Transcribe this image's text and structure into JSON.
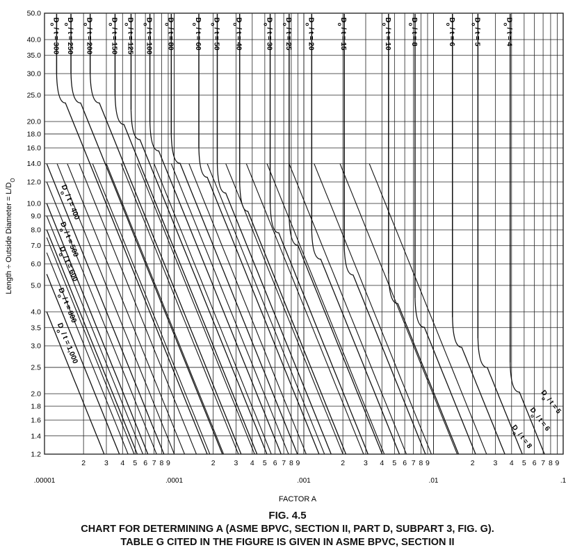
{
  "chart_data": {
    "type": "line",
    "xscale": "log",
    "yscale": "log",
    "xlim": [
      1e-05,
      0.1
    ],
    "ylim": [
      1.2,
      50.0
    ],
    "xlabel": "FACTOR A",
    "ylabel": "Length ÷ Outside Diameter = L/D",
    "ylabel_sub": "O",
    "grid": true,
    "y_ticks": [
      {
        "v": 50.0,
        "label": "50.0"
      },
      {
        "v": 40.0,
        "label": "40.0"
      },
      {
        "v": 35.0,
        "label": "35.0"
      },
      {
        "v": 30.0,
        "label": "30.0"
      },
      {
        "v": 25.0,
        "label": "25.0"
      },
      {
        "v": 20.0,
        "label": "20.0"
      },
      {
        "v": 18.0,
        "label": "18.0"
      },
      {
        "v": 16.0,
        "label": "16.0"
      },
      {
        "v": 14.0,
        "label": "14.0"
      },
      {
        "v": 12.0,
        "label": "12.0"
      },
      {
        "v": 10.0,
        "label": "10.0"
      },
      {
        "v": 9.0,
        "label": "9.0"
      },
      {
        "v": 8.0,
        "label": "8.0"
      },
      {
        "v": 7.0,
        "label": "7.0"
      },
      {
        "v": 6.0,
        "label": "6.0"
      },
      {
        "v": 5.0,
        "label": "5.0"
      },
      {
        "v": 4.0,
        "label": "4.0"
      },
      {
        "v": 3.5,
        "label": "3.5"
      },
      {
        "v": 3.0,
        "label": "3.0"
      },
      {
        "v": 2.5,
        "label": "2.5"
      },
      {
        "v": 2.0,
        "label": "2.0"
      },
      {
        "v": 1.8,
        "label": "1.8"
      },
      {
        "v": 1.6,
        "label": "1.6"
      },
      {
        "v": 1.4,
        "label": "1.4"
      },
      {
        "v": 1.2,
        "label": "1.2"
      }
    ],
    "x_minor_labels": [
      "2",
      "3",
      "4",
      "5",
      "6",
      "7",
      "8",
      "9"
    ],
    "x_major_labels": [
      {
        "v": 1e-05,
        "label": ".00001"
      },
      {
        "v": 0.0001,
        "label": ".0001"
      },
      {
        "v": 0.001,
        "label": ".001"
      },
      {
        "v": 0.01,
        "label": ".01"
      },
      {
        "v": 0.1,
        "label": ".1"
      }
    ],
    "series": [
      {
        "name": "300",
        "label_pos": "top",
        "xv": 1.24e-05,
        "kink": 30.0,
        "knee": 1.45e-05
      },
      {
        "name": "250",
        "label_pos": "top",
        "xv": 1.6e-05,
        "kink": 30.0,
        "knee": 1.9e-05
      },
      {
        "name": "200",
        "label_pos": "top",
        "xv": 2.25e-05,
        "kink": 30.0,
        "knee": 2.65e-05
      },
      {
        "name": "150",
        "label_pos": "top",
        "xv": 3.5e-05,
        "kink": 25.0,
        "knee": 4.1e-05
      },
      {
        "name": "125",
        "label_pos": "top",
        "xv": 4.65e-05,
        "kink": 22.0,
        "knee": 5.45e-05
      },
      {
        "name": "100",
        "label_pos": "top",
        "xv": 6.5e-05,
        "kink": 20.0,
        "knee": 7.6e-05
      },
      {
        "name": "80",
        "label_pos": "top",
        "xv": 9.5e-05,
        "kink": 18.0,
        "knee": 0.000111
      },
      {
        "name": "60",
        "label_pos": "top",
        "xv": 0.000155,
        "kink": 16.0,
        "knee": 0.00018
      },
      {
        "name": "50",
        "label_pos": "top",
        "xv": 0.000215,
        "kink": 14.0,
        "knee": 0.00025
      },
      {
        "name": "40",
        "label_pos": "top",
        "xv": 0.00032,
        "kink": 12.0,
        "knee": 0.00037
      },
      {
        "name": "30",
        "label_pos": "top",
        "xv": 0.00055,
        "kink": 10.0,
        "knee": 0.00064
      },
      {
        "name": "25",
        "label_pos": "top",
        "xv": 0.00077,
        "kink": 9.0,
        "knee": 0.0009
      },
      {
        "name": "20",
        "label_pos": "top",
        "xv": 0.00115,
        "kink": 8.0,
        "knee": 0.00135
      },
      {
        "name": "15",
        "label_pos": "top",
        "xv": 0.00205,
        "kink": 7.0,
        "knee": 0.0024
      },
      {
        "name": "10",
        "label_pos": "top",
        "xv": 0.0045,
        "kink": 5.5,
        "knee": 0.0053
      },
      {
        "name": "8",
        "label_pos": "top",
        "xv": 0.0072,
        "kink": 4.5,
        "knee": 0.0085
      },
      {
        "name": "6",
        "label_pos": "top",
        "xv": 0.014,
        "kink": 3.8,
        "knee": 0.0165
      },
      {
        "name": "5",
        "label_pos": "top",
        "xv": 0.022,
        "kink": 3.2,
        "knee": 0.026
      },
      {
        "name": "4",
        "label_pos": "top",
        "xv": 0.039,
        "kink": 2.6,
        "knee": 0.046
      },
      {
        "name": "400",
        "label_pos": "left",
        "start": [
          1.04e-05,
          14.0
        ]
      },
      {
        "name": "500",
        "label_pos": "left",
        "start": [
          1.04e-05,
          10.0
        ]
      },
      {
        "name": "600",
        "label_pos": "left",
        "start": [
          1.04e-05,
          8.0
        ]
      },
      {
        "name": "800",
        "label_pos": "left",
        "start": [
          1.04e-05,
          5.5
        ]
      },
      {
        "name": "1,000",
        "label_pos": "left",
        "start": [
          1.04e-05,
          4.0
        ]
      }
    ],
    "extra_diagonals": [
      [
        1.04e-05,
        6.6
      ],
      [
        1.04e-05,
        7.5
      ],
      [
        1.04e-05,
        9.0
      ],
      [
        1.04e-05,
        12.0
      ],
      [
        1.25e-05,
        14.0
      ],
      [
        1.5e-05,
        14.0
      ],
      [
        1.85e-05,
        14.0
      ],
      [
        2.35e-05,
        14.0
      ],
      [
        3e-05,
        14.0
      ],
      [
        3.9e-05,
        14.0
      ],
      [
        5.2e-05,
        14.0
      ],
      [
        7e-05,
        14.0
      ],
      [
        9.5e-05,
        14.0
      ],
      [
        0.00013,
        14.0
      ],
      [
        0.00018,
        14.0
      ],
      [
        0.00025,
        14.0
      ],
      [
        0.00036,
        14.0
      ],
      [
        0.00052,
        14.0
      ],
      [
        0.00077,
        14.0
      ],
      [
        0.0012,
        14.0
      ],
      [
        0.0019,
        14.0
      ],
      [
        0.0032,
        14.0
      ]
    ],
    "bottom_right_labels": [
      "5",
      "6",
      "8"
    ],
    "label_prefix": "D",
    "label_sub": "o",
    "label_mid": "/ t ="
  },
  "captions": {
    "fig": "FIG. 4.5",
    "line1": "CHART FOR DETERMINING A (ASME BPVC, SECTION II, PART D, SUBPART 3, FIG. G).",
    "line2": "TABLE G CITED IN THE FIGURE IS GIVEN IN ASME BPVC, SECTION II"
  }
}
